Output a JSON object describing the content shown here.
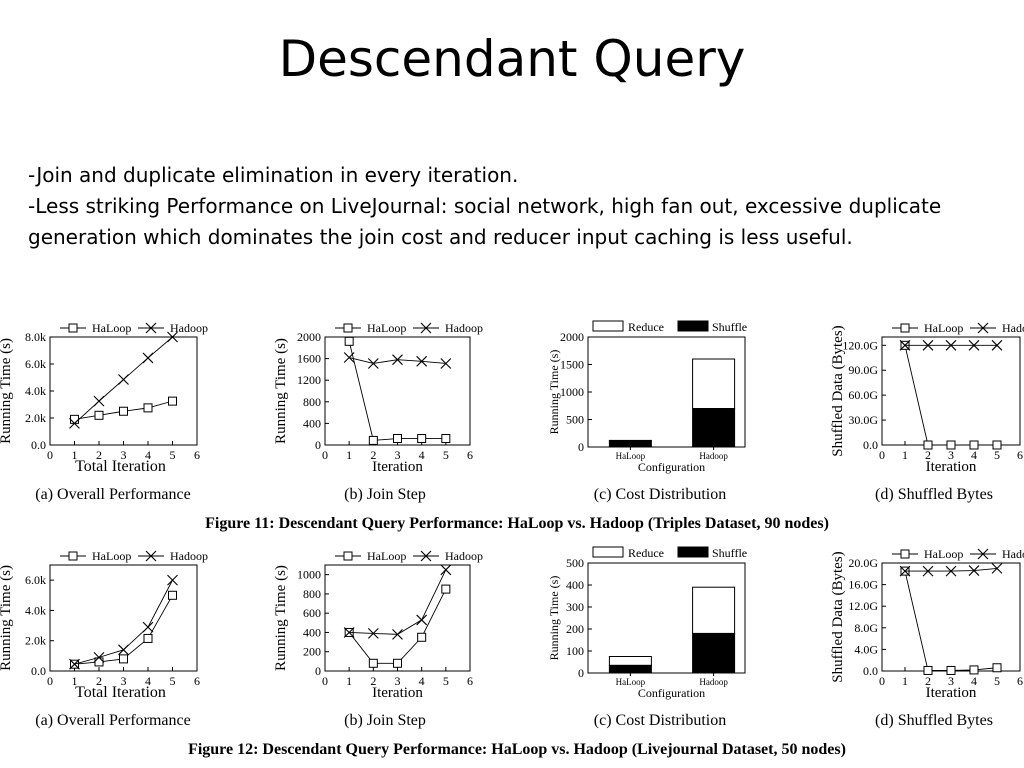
{
  "slide": {
    "title": "Descendant Query",
    "bullets": [
      "-Join and duplicate elimination in every iteration.",
      "-Less striking Performance on LiveJournal: social network, high fan out, excessive duplicate generation which dominates the join cost and reducer input caching is less useful."
    ]
  },
  "figures": [
    {
      "caption": "Figure 11: Descendant Query Performance: HaLoop vs. Hadoop (Triples Dataset, 90 nodes)"
    },
    {
      "caption": "Figure 12: Descendant Query Performance: HaLoop vs. Hadoop (Livejournal Dataset, 50 nodes)"
    }
  ],
  "chart_data": [
    {
      "type": "line",
      "subcaption": "(a) Overall Performance",
      "xlabel": "Total Iteration",
      "ylabel": "Running Time (s)",
      "xlim": [
        0,
        6
      ],
      "xticks": [
        "0",
        "1",
        "2",
        "3",
        "4",
        "5",
        "6"
      ],
      "ylim": [
        0,
        8000
      ],
      "yticks": [
        0,
        2000,
        4000,
        6000,
        8000
      ],
      "yticklabels": [
        "0.0",
        "2.0k",
        "4.0k",
        "6.0k",
        "8.0k"
      ],
      "legend": [
        "HaLoop",
        "Hadoop"
      ],
      "series": [
        {
          "name": "HaLoop",
          "marker": "square",
          "x": [
            1,
            2,
            3,
            4,
            5
          ],
          "values": [
            1900,
            2200,
            2500,
            2750,
            3250
          ]
        },
        {
          "name": "Hadoop",
          "marker": "cross",
          "x": [
            1,
            2,
            3,
            4,
            5
          ],
          "values": [
            1600,
            3250,
            4850,
            6450,
            8000
          ]
        }
      ]
    },
    {
      "type": "line",
      "subcaption": "(b) Join Step",
      "xlabel": "Iteration",
      "ylabel": "Running Time (s)",
      "xlim": [
        0,
        6
      ],
      "xticks": [
        "0",
        "1",
        "2",
        "3",
        "4",
        "5",
        "6"
      ],
      "ylim": [
        0,
        2000
      ],
      "yticks": [
        0,
        400,
        800,
        1200,
        1600,
        2000
      ],
      "yticklabels": [
        "0",
        "400",
        "800",
        "1200",
        "1600",
        "2000"
      ],
      "legend": [
        "HaLoop",
        "Hadoop"
      ],
      "series": [
        {
          "name": "HaLoop",
          "marker": "square",
          "x": [
            1,
            2,
            3,
            4,
            5
          ],
          "values": [
            1920,
            85,
            120,
            120,
            120
          ]
        },
        {
          "name": "Hadoop",
          "marker": "cross",
          "x": [
            1,
            2,
            3,
            4,
            5
          ],
          "values": [
            1620,
            1510,
            1580,
            1550,
            1510
          ]
        }
      ]
    },
    {
      "type": "bar",
      "stacked": true,
      "subcaption": "(c) Cost Distribution",
      "xlabel": "Configuration",
      "ylabel": "Running Time (s)",
      "categories": [
        "HaLoop",
        "Hadoop"
      ],
      "ylim": [
        0,
        2000
      ],
      "yticks": [
        0,
        500,
        1000,
        1500,
        2000
      ],
      "yticklabels": [
        "0",
        "500",
        "1000",
        "1500",
        "2000"
      ],
      "legend": [
        "Reduce",
        "Shuffle"
      ],
      "series": [
        {
          "name": "Shuffle",
          "color": "#000000",
          "values": [
            120,
            700
          ]
        },
        {
          "name": "Reduce",
          "color": "#ffffff",
          "values": [
            0,
            900
          ]
        }
      ]
    },
    {
      "type": "line",
      "subcaption": "(d) Shuffled Bytes",
      "xlabel": "Iteration",
      "ylabel": "Shuffled Data (Bytes)",
      "xlim": [
        0,
        6
      ],
      "xticks": [
        "0",
        "1",
        "2",
        "3",
        "4",
        "5",
        "6"
      ],
      "ylim": [
        0,
        130
      ],
      "yticks": [
        0,
        30,
        60,
        90,
        120
      ],
      "yticklabels": [
        "0.0",
        "30.0G",
        "60.0G",
        "90.0G",
        "120.0G"
      ],
      "legend": [
        "HaLoop",
        "Hadoop"
      ],
      "series": [
        {
          "name": "HaLoop",
          "marker": "square",
          "x": [
            1,
            2,
            3,
            4,
            5
          ],
          "values": [
            120,
            0,
            0,
            0,
            0
          ]
        },
        {
          "name": "Hadoop",
          "marker": "cross",
          "x": [
            1,
            2,
            3,
            4,
            5
          ],
          "values": [
            120,
            120,
            120,
            120,
            120
          ]
        }
      ]
    },
    {
      "type": "line",
      "subcaption": "(a) Overall Performance",
      "xlabel": "Total Iteration",
      "ylabel": "Running Time (s)",
      "xlim": [
        0,
        6
      ],
      "xticks": [
        "0",
        "1",
        "2",
        "3",
        "4",
        "5",
        "6"
      ],
      "ylim": [
        0,
        7000
      ],
      "yticks": [
        0,
        2000,
        4000,
        6000
      ],
      "yticklabels": [
        "0.0",
        "2.0k",
        "4.0k",
        "6.0k"
      ],
      "legend": [
        "HaLoop",
        "Hadoop"
      ],
      "series": [
        {
          "name": "HaLoop",
          "marker": "square",
          "x": [
            1,
            2,
            3,
            4,
            5
          ],
          "values": [
            450,
            600,
            800,
            2150,
            5000
          ]
        },
        {
          "name": "Hadoop",
          "marker": "cross",
          "x": [
            1,
            2,
            3,
            4,
            5
          ],
          "values": [
            450,
            900,
            1400,
            2900,
            6000
          ]
        }
      ]
    },
    {
      "type": "line",
      "subcaption": "(b) Join Step",
      "xlabel": "Iteration",
      "ylabel": "Running Time (s)",
      "xlim": [
        0,
        6
      ],
      "xticks": [
        "0",
        "1",
        "2",
        "3",
        "4",
        "5",
        "6"
      ],
      "ylim": [
        0,
        1100
      ],
      "yticks": [
        0,
        200,
        400,
        600,
        800,
        1000
      ],
      "yticklabels": [
        "0",
        "200",
        "400",
        "600",
        "800",
        "1000"
      ],
      "legend": [
        "HaLoop",
        "Hadoop"
      ],
      "series": [
        {
          "name": "HaLoop",
          "marker": "square",
          "x": [
            1,
            2,
            3,
            4,
            5
          ],
          "values": [
            400,
            80,
            80,
            350,
            850
          ]
        },
        {
          "name": "Hadoop",
          "marker": "cross",
          "x": [
            1,
            2,
            3,
            4,
            5
          ],
          "values": [
            400,
            390,
            380,
            530,
            1050
          ]
        }
      ]
    },
    {
      "type": "bar",
      "stacked": true,
      "subcaption": "(c) Cost Distribution",
      "xlabel": "Configuration",
      "ylabel": "Running Time (s)",
      "categories": [
        "HaLoop",
        "Hadoop"
      ],
      "ylim": [
        0,
        500
      ],
      "yticks": [
        0,
        100,
        200,
        300,
        400,
        500
      ],
      "yticklabels": [
        "0",
        "100",
        "200",
        "300",
        "400",
        "500"
      ],
      "legend": [
        "Reduce",
        "Shuffle"
      ],
      "series": [
        {
          "name": "Shuffle",
          "color": "#000000",
          "values": [
            35,
            180
          ]
        },
        {
          "name": "Reduce",
          "color": "#ffffff",
          "values": [
            40,
            210
          ]
        }
      ]
    },
    {
      "type": "line",
      "subcaption": "(d) Shuffled Bytes",
      "xlabel": "Iteration",
      "ylabel": "Shuffled Data (Bytes)",
      "xlim": [
        0,
        6
      ],
      "xticks": [
        "0",
        "1",
        "2",
        "3",
        "4",
        "5",
        "6"
      ],
      "ylim": [
        0,
        20
      ],
      "yticks": [
        0,
        4,
        8,
        12,
        16,
        20
      ],
      "yticklabels": [
        "0.0",
        "4.0G",
        "8.0G",
        "12.0G",
        "16.0G",
        "20.0G"
      ],
      "legend": [
        "HaLoop",
        "Hadoop"
      ],
      "series": [
        {
          "name": "HaLoop",
          "marker": "square",
          "x": [
            1,
            2,
            3,
            4,
            5
          ],
          "values": [
            18.5,
            0.1,
            0.1,
            0.2,
            0.6
          ]
        },
        {
          "name": "Hadoop",
          "marker": "cross",
          "x": [
            1,
            2,
            3,
            4,
            5
          ],
          "values": [
            18.5,
            18.5,
            18.5,
            18.6,
            19
          ]
        }
      ]
    }
  ]
}
